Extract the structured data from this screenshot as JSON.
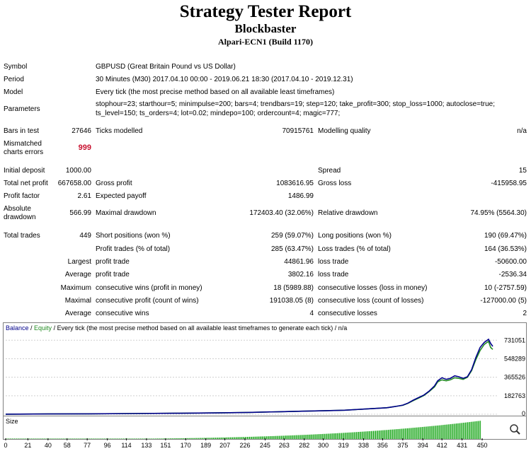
{
  "report": {
    "title": "Strategy Tester Report",
    "expert": "Blockbaster",
    "server": "Alpari-ECN1 (Build 1170)"
  },
  "info": {
    "symbol_label": "Symbol",
    "symbol_value": "GBPUSD (Great Britain Pound vs US Dollar)",
    "period_label": "Period",
    "period_value": "30 Minutes (M30) 2017.04.10 00:00 - 2019.06.21 18:30 (2017.04.10 - 2019.12.31)",
    "model_label": "Model",
    "model_value": "Every tick (the most precise method based on all available least timeframes)",
    "params_label": "Parameters",
    "params_line1": "stophour=23; starthour=5; minimpulse=200; bars=4; trendbars=19; step=120; take_profit=300; stop_loss=1000; autoclose=true;",
    "params_line2": "ts_level=150; ts_orders=4; lot=0.02; mindepo=100; ordercount=4; magic=777;"
  },
  "stats": {
    "bars_label": "Bars in test",
    "bars_value": "27646",
    "ticks_label": "Ticks modelled",
    "ticks_value": "70915761",
    "quality_label": "Modelling quality",
    "quality_value": "n/a",
    "mismatch_label_1": "Mismatched",
    "mismatch_label_2": "charts errors",
    "mismatch_value": "999",
    "deposit_label": "Initial deposit",
    "deposit_value": "1000.00",
    "spread_label": "Spread",
    "spread_value": "15",
    "netprofit_label": "Total net profit",
    "netprofit_value": "667658.00",
    "grossprofit_label": "Gross profit",
    "grossprofit_value": "1083616.95",
    "grossloss_label": "Gross loss",
    "grossloss_value": "-415958.95",
    "pf_label": "Profit factor",
    "pf_value": "2.61",
    "payoff_label": "Expected payoff",
    "payoff_value": "1486.99",
    "absdd_label_1": "Absolute",
    "absdd_label_2": "drawdown",
    "absdd_value": "566.99",
    "maxdd_label": "Maximal drawdown",
    "maxdd_value": "172403.40 (32.06%)",
    "reldd_label": "Relative drawdown",
    "reldd_value": "74.95% (5564.30)",
    "trades_label": "Total trades",
    "trades_value": "449",
    "short_label": "Short positions (won %)",
    "short_value": "259 (59.07%)",
    "long_label": "Long positions (won %)",
    "long_value": "190 (69.47%)",
    "ptrades_label": "Profit trades (% of total)",
    "ptrades_value": "285 (63.47%)",
    "ltrades_label": "Loss trades (% of total)",
    "ltrades_value": "164 (36.53%)",
    "largest": "Largest",
    "lp_label": "profit trade",
    "lp_value": "44861.96",
    "ll_label": "loss trade",
    "ll_value": "-50600.00",
    "average": "Average",
    "ap_label": "profit trade",
    "ap_value": "3802.16",
    "al_label": "loss trade",
    "al_value": "-2536.34",
    "maximum": "Maximum",
    "mcw_label": "consecutive wins (profit in money)",
    "mcw_value": "18 (5989.88)",
    "mcl_label": "consecutive losses (loss in money)",
    "mcl_value": "10 (-2757.59)",
    "maximal": "Maximal",
    "mcp_label": "consecutive profit (count of wins)",
    "mcp_value": "191038.05 (8)",
    "mcll_label": "consecutive loss (count of losses)",
    "mcll_value": "-127000.00 (5)",
    "average2": "Average",
    "acw_label": "consecutive wins",
    "acw_value": "4",
    "acl_label": "consecutive losses",
    "acl_value": "2"
  },
  "chart_data": {
    "type": "line",
    "legend_balance": "Balance",
    "legend_sep": " / ",
    "legend_equity": "Equity",
    "legend_rest": " / Every tick (the most precise method based on all available least timeframes to generate each tick) / n/a",
    "size_label": "Size",
    "balance_color": "#00008b",
    "equity_color": "#228b22",
    "size_color": "#22aa22",
    "y_ticks": [
      0,
      182763,
      365526,
      548289,
      731051
    ],
    "x_ticks": [
      0,
      21,
      40,
      58,
      77,
      96,
      114,
      133,
      151,
      170,
      189,
      207,
      226,
      245,
      263,
      282,
      300,
      319,
      338,
      356,
      375,
      394,
      412,
      431,
      450
    ],
    "xlim": [
      0,
      460
    ],
    "ylim": [
      0,
      810000
    ],
    "balance": [
      [
        0,
        1000
      ],
      [
        40,
        2500
      ],
      [
        80,
        4500
      ],
      [
        120,
        7000
      ],
      [
        160,
        9500
      ],
      [
        200,
        13000
      ],
      [
        230,
        18000
      ],
      [
        260,
        25000
      ],
      [
        280,
        30000
      ],
      [
        300,
        34000
      ],
      [
        320,
        40000
      ],
      [
        330,
        46000
      ],
      [
        340,
        52000
      ],
      [
        350,
        58000
      ],
      [
        360,
        64000
      ],
      [
        365,
        72000
      ],
      [
        370,
        80000
      ],
      [
        375,
        90000
      ],
      [
        380,
        110000
      ],
      [
        385,
        140000
      ],
      [
        390,
        165000
      ],
      [
        395,
        190000
      ],
      [
        400,
        230000
      ],
      [
        405,
        280000
      ],
      [
        408,
        330000
      ],
      [
        412,
        360000
      ],
      [
        416,
        345000
      ],
      [
        420,
        355000
      ],
      [
        424,
        380000
      ],
      [
        428,
        370000
      ],
      [
        432,
        355000
      ],
      [
        436,
        370000
      ],
      [
        440,
        440000
      ],
      [
        444,
        560000
      ],
      [
        448,
        660000
      ],
      [
        452,
        710000
      ],
      [
        456,
        740000
      ],
      [
        458,
        700000
      ],
      [
        460,
        670000
      ]
    ],
    "equity": [
      [
        0,
        1000
      ],
      [
        40,
        2500
      ],
      [
        80,
        4500
      ],
      [
        120,
        7000
      ],
      [
        160,
        9500
      ],
      [
        200,
        13000
      ],
      [
        230,
        18000
      ],
      [
        260,
        25000
      ],
      [
        280,
        30000
      ],
      [
        300,
        34000
      ],
      [
        320,
        40000
      ],
      [
        330,
        46000
      ],
      [
        340,
        52000
      ],
      [
        350,
        58000
      ],
      [
        360,
        64000
      ],
      [
        365,
        72000
      ],
      [
        370,
        80000
      ],
      [
        375,
        88000
      ],
      [
        380,
        108000
      ],
      [
        385,
        135000
      ],
      [
        390,
        160000
      ],
      [
        395,
        185000
      ],
      [
        400,
        225000
      ],
      [
        405,
        270000
      ],
      [
        408,
        320000
      ],
      [
        412,
        340000
      ],
      [
        416,
        330000
      ],
      [
        420,
        340000
      ],
      [
        424,
        360000
      ],
      [
        428,
        355000
      ],
      [
        432,
        345000
      ],
      [
        436,
        365000
      ],
      [
        440,
        430000
      ],
      [
        444,
        540000
      ],
      [
        448,
        630000
      ],
      [
        452,
        690000
      ],
      [
        456,
        720000
      ],
      [
        458,
        660000
      ],
      [
        460,
        640000
      ]
    ]
  }
}
